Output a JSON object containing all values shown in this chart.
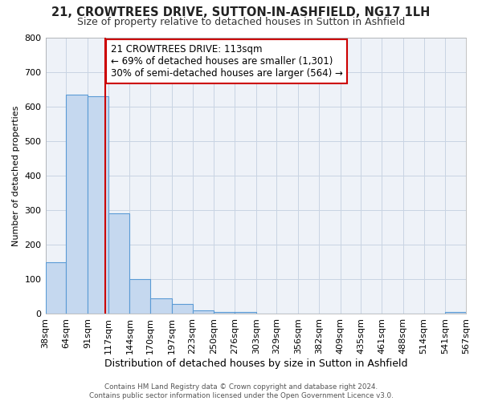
{
  "title": "21, CROWTREES DRIVE, SUTTON-IN-ASHFIELD, NG17 1LH",
  "subtitle": "Size of property relative to detached houses in Sutton in Ashfield",
  "xlabel": "Distribution of detached houses by size in Sutton in Ashfield",
  "ylabel": "Number of detached properties",
  "bin_edges": [
    38,
    64,
    91,
    117,
    144,
    170,
    197,
    223,
    250,
    276,
    303,
    329,
    356,
    382,
    409,
    435,
    461,
    488,
    514,
    541,
    567
  ],
  "bar_heights": [
    150,
    635,
    630,
    290,
    100,
    45,
    30,
    10,
    5,
    5,
    0,
    0,
    0,
    0,
    0,
    0,
    0,
    0,
    0,
    5
  ],
  "bar_color": "#c5d8ef",
  "bar_edge_color": "#5b9bd5",
  "property_value": 113,
  "vline_color": "#cc0000",
  "annotation_line1": "21 CROWTREES DRIVE: 113sqm",
  "annotation_line2": "← 69% of detached houses are smaller (1,301)",
  "annotation_line3": "30% of semi-detached houses are larger (564) →",
  "annotation_box_color": "#ffffff",
  "annotation_box_edge_color": "#cc0000",
  "ylim": [
    0,
    800
  ],
  "yticks": [
    0,
    100,
    200,
    300,
    400,
    500,
    600,
    700,
    800
  ],
  "footer_line1": "Contains HM Land Registry data © Crown copyright and database right 2024.",
  "footer_line2": "Contains public sector information licensed under the Open Government Licence v3.0.",
  "background_color": "#ffffff",
  "grid_color": "#c8d4e3",
  "title_fontsize": 10.5,
  "subtitle_fontsize": 9
}
